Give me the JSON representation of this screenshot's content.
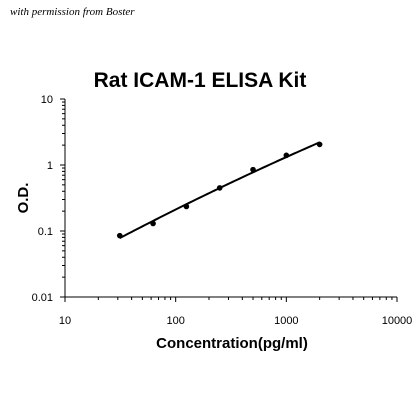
{
  "watermark": "with permission from Boster",
  "chart_data": {
    "type": "scatter",
    "title": "Rat ICAM-1 ELISA Kit",
    "xlabel": "Concentration(pg/ml)",
    "ylabel": "O.D.",
    "x_scale": "log",
    "y_scale": "log",
    "xlim": [
      10,
      10000
    ],
    "ylim": [
      0.01,
      10
    ],
    "x_ticks": [
      "10",
      "100",
      "1000",
      "10000"
    ],
    "y_ticks": [
      "10",
      "1",
      "0.1",
      "0.01"
    ],
    "grid": false,
    "legend": "none",
    "series": [
      {
        "x": [
          31.25,
          62.5,
          125,
          250,
          500,
          1000,
          2000
        ],
        "y": [
          0.085,
          0.13,
          0.235,
          0.45,
          0.85,
          1.4,
          2.05
        ]
      }
    ],
    "fit_curve": true,
    "colors": {
      "line": "#000000",
      "marker": "#000000",
      "axis": "#000000"
    }
  }
}
